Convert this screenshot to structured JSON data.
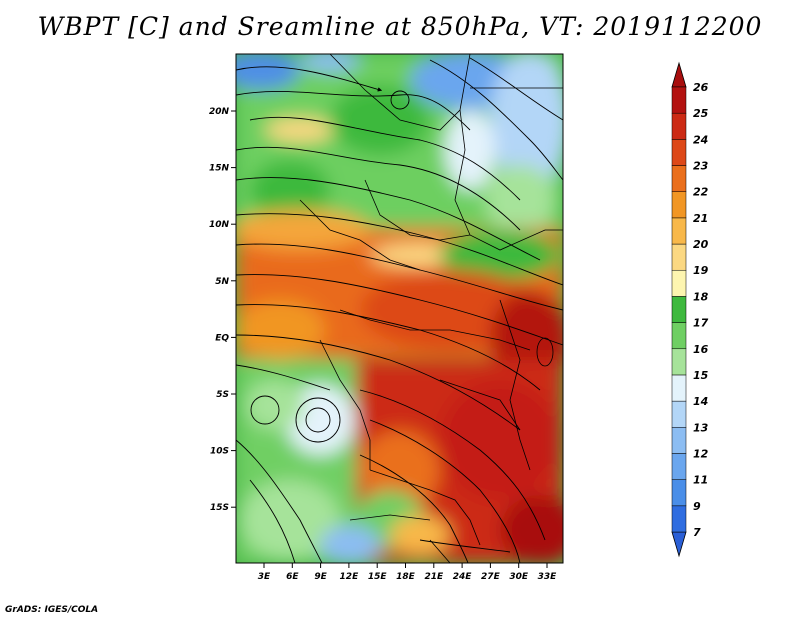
{
  "title": "WBPT [C] and Sreamline at 850hPa, VT: 2019112200",
  "credit": "GrADS: IGES/COLA",
  "map": {
    "lon_labels": [
      "3E",
      "6E",
      "9E",
      "12E",
      "15E",
      "18E",
      "21E",
      "24E",
      "27E",
      "30E",
      "33E"
    ],
    "lat_labels": [
      "20N",
      "15N",
      "10N",
      "5N",
      "EQ",
      "5S",
      "10S",
      "15S"
    ]
  },
  "colorbar": {
    "labels": [
      "7",
      "9",
      "11",
      "12",
      "13",
      "14",
      "15",
      "16",
      "17",
      "18",
      "19",
      "20",
      "21",
      "22",
      "23",
      "24",
      "25",
      "26"
    ],
    "colors": [
      "#2f6de0",
      "#4a8ee8",
      "#6aa6ee",
      "#8cbdf2",
      "#b3d6f7",
      "#e4f3fb",
      "#a6e39a",
      "#6fcf63",
      "#3eb93e",
      "#fdf5b0",
      "#fbd882",
      "#f8b84a",
      "#f19624",
      "#ea6f1c",
      "#dd4818",
      "#cc2a14",
      "#b31210"
    ],
    "top_color": "#a80e0e",
    "bottom_color": "#2a5fd6"
  }
}
